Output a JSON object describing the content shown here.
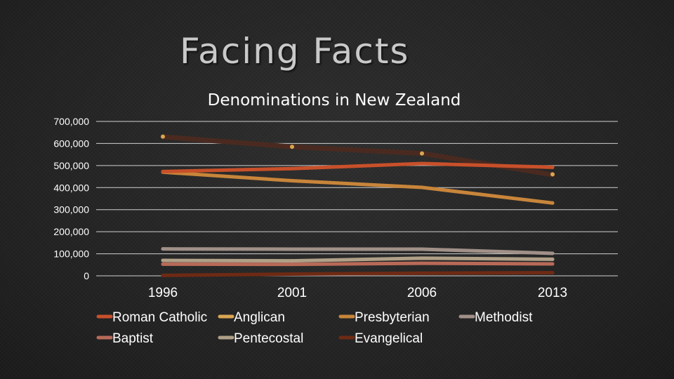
{
  "slide": {
    "title": "Facing Facts"
  },
  "chart_data": {
    "type": "line",
    "title": "Denominations in New Zealand",
    "xlabel": "",
    "ylabel": "",
    "categories": [
      "1996",
      "2001",
      "2006",
      "2013"
    ],
    "ylim": [
      0,
      700000
    ],
    "yticks": [
      0,
      100000,
      200000,
      300000,
      400000,
      500000,
      600000,
      700000
    ],
    "ytick_labels": [
      "0",
      "100,000",
      "200,000",
      "300,000",
      "400,000",
      "500,000",
      "600,000",
      "700,000"
    ],
    "grid": true,
    "legend_position": "bottom",
    "series": [
      {
        "name": "Roman Catholic",
        "color": "#c8502a",
        "values": [
          473000,
          486000,
          509000,
          492000
        ]
      },
      {
        "name": "Anglican",
        "color": "#d9a652",
        "values": [
          631000,
          585000,
          555000,
          460000
        ]
      },
      {
        "name": "Presbyterian",
        "color": "#c8853a",
        "values": [
          470000,
          431000,
          401000,
          330000
        ]
      },
      {
        "name": "Methodist",
        "color": "#a09088",
        "values": [
          122000,
          121000,
          121000,
          102000
        ]
      },
      {
        "name": "Baptist",
        "color": "#b86a58",
        "values": [
          53000,
          52000,
          57000,
          54000
        ]
      },
      {
        "name": "Pentecostal",
        "color": "#b0a088",
        "values": [
          70000,
          68000,
          80000,
          75000
        ]
      },
      {
        "name": "Evangelical",
        "color": "#6e2a14",
        "values": [
          2000,
          8000,
          12000,
          14000
        ]
      }
    ],
    "extra_dark_line": {
      "color": "#4a2a20",
      "values": [
        630000,
        585000,
        555000,
        458000
      ]
    }
  }
}
